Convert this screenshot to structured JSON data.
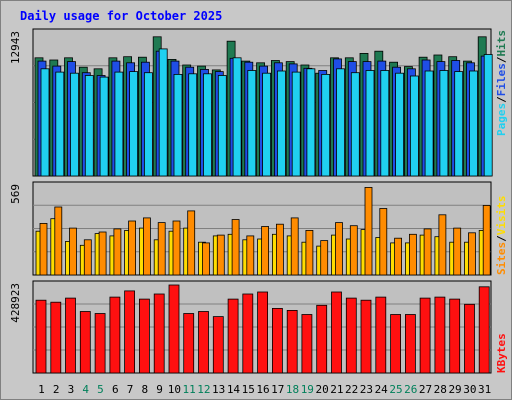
{
  "title": "Daily usage for October 2025",
  "colors": {
    "background": "#c8c8c8",
    "panel": "#c0c0c0",
    "grid": "#808080",
    "hits": "#1f7a52",
    "files": "#1f4ee6",
    "pages": "#20d0f0",
    "visits": "#ffdd00",
    "sites": "#ff8c00",
    "kbytes": "#ff1010",
    "day_black": "#000000",
    "day_weekend": "#00805a"
  },
  "chart_data": [
    {
      "type": "bar",
      "panel": "hits-files-pages",
      "ymax_label": "12943",
      "ylim": [
        0,
        12943
      ],
      "categories": [
        "1",
        "2",
        "3",
        "4",
        "5",
        "6",
        "7",
        "8",
        "9",
        "10",
        "11",
        "12",
        "13",
        "14",
        "15",
        "16",
        "17",
        "18",
        "19",
        "20",
        "21",
        "22",
        "23",
        "24",
        "25",
        "26",
        "27",
        "28",
        "29",
        "30",
        "31"
      ],
      "series": [
        {
          "name": "Hits",
          "values": [
            10700,
            10500,
            10700,
            9850,
            9700,
            10700,
            10800,
            10750,
            12600,
            10550,
            10050,
            9950,
            9600,
            12200,
            10400,
            10250,
            10450,
            10350,
            10050,
            9300,
            10700,
            10700,
            11100,
            11300,
            10300,
            9900,
            10750,
            10950,
            10800,
            10400,
            12600
          ]
        },
        {
          "name": "Files",
          "values": [
            10400,
            9950,
            10350,
            9350,
            9100,
            10400,
            10250,
            10300,
            11300,
            10400,
            9850,
            9650,
            9450,
            10650,
            10300,
            9950,
            10250,
            10150,
            9750,
            9550,
            10600,
            10350,
            10350,
            10400,
            9850,
            9700,
            10500,
            10350,
            10450,
            10250,
            10850
          ]
        },
        {
          "name": "Pages",
          "values": [
            9700,
            9400,
            9300,
            9100,
            8950,
            9400,
            9450,
            9350,
            11500,
            9200,
            9250,
            9250,
            9100,
            10700,
            9550,
            9300,
            9500,
            9400,
            9700,
            9200,
            9700,
            9350,
            9550,
            9550,
            9300,
            9050,
            9500,
            9550,
            9450,
            9500,
            11000
          ]
        }
      ],
      "legend": [
        "Pages",
        "Files",
        "Hits"
      ]
    },
    {
      "type": "bar",
      "panel": "visits-sites",
      "ymax_label": "569",
      "ylim": [
        0,
        569
      ],
      "categories": [
        "1",
        "2",
        "3",
        "4",
        "5",
        "6",
        "7",
        "8",
        "9",
        "10",
        "11",
        "12",
        "13",
        "14",
        "15",
        "16",
        "17",
        "18",
        "19",
        "20",
        "21",
        "22",
        "23",
        "24",
        "25",
        "26",
        "27",
        "28",
        "29",
        "30",
        "31"
      ],
      "series": [
        {
          "name": "Visits",
          "values": [
            280,
            360,
            215,
            190,
            265,
            250,
            285,
            300,
            225,
            280,
            300,
            210,
            250,
            260,
            225,
            230,
            260,
            250,
            210,
            185,
            255,
            230,
            290,
            240,
            205,
            205,
            255,
            245,
            210,
            210,
            285
          ]
        },
        {
          "name": "Sites",
          "values": [
            330,
            435,
            300,
            225,
            275,
            295,
            345,
            365,
            335,
            345,
            410,
            205,
            255,
            355,
            250,
            310,
            325,
            365,
            285,
            220,
            335,
            315,
            560,
            425,
            235,
            260,
            295,
            385,
            300,
            270,
            445
          ]
        }
      ],
      "legend": [
        "Sites",
        "Visits"
      ]
    },
    {
      "type": "bar",
      "panel": "kbytes",
      "ymax_label": "428923",
      "ylim": [
        0,
        428923
      ],
      "categories": [
        "1",
        "2",
        "3",
        "4",
        "5",
        "6",
        "7",
        "8",
        "9",
        "10",
        "11",
        "12",
        "13",
        "14",
        "15",
        "16",
        "17",
        "18",
        "19",
        "20",
        "21",
        "22",
        "23",
        "24",
        "25",
        "26",
        "27",
        "28",
        "29",
        "30",
        "31"
      ],
      "series": [
        {
          "name": "KBytes",
          "values": [
            355000,
            345000,
            365000,
            300000,
            290000,
            370000,
            400000,
            360000,
            385000,
            428923,
            290000,
            300000,
            275000,
            360000,
            385000,
            395000,
            315000,
            305000,
            285000,
            330000,
            395000,
            365000,
            355000,
            370000,
            285000,
            285000,
            365000,
            370000,
            360000,
            335000,
            420000
          ]
        }
      ],
      "legend": [
        "KBytes"
      ]
    }
  ],
  "days": [
    {
      "label": "1",
      "weekend": false
    },
    {
      "label": "2",
      "weekend": false
    },
    {
      "label": "3",
      "weekend": false
    },
    {
      "label": "4",
      "weekend": true
    },
    {
      "label": "5",
      "weekend": true
    },
    {
      "label": "6",
      "weekend": false
    },
    {
      "label": "7",
      "weekend": false
    },
    {
      "label": "8",
      "weekend": false
    },
    {
      "label": "9",
      "weekend": false
    },
    {
      "label": "10",
      "weekend": false
    },
    {
      "label": "11",
      "weekend": true
    },
    {
      "label": "12",
      "weekend": true
    },
    {
      "label": "13",
      "weekend": false
    },
    {
      "label": "14",
      "weekend": false
    },
    {
      "label": "15",
      "weekend": false
    },
    {
      "label": "16",
      "weekend": false
    },
    {
      "label": "17",
      "weekend": false
    },
    {
      "label": "18",
      "weekend": true
    },
    {
      "label": "19",
      "weekend": true
    },
    {
      "label": "20",
      "weekend": false
    },
    {
      "label": "21",
      "weekend": false
    },
    {
      "label": "22",
      "weekend": false
    },
    {
      "label": "23",
      "weekend": false
    },
    {
      "label": "24",
      "weekend": false
    },
    {
      "label": "25",
      "weekend": true
    },
    {
      "label": "26",
      "weekend": true
    },
    {
      "label": "27",
      "weekend": false
    },
    {
      "label": "28",
      "weekend": false
    },
    {
      "label": "29",
      "weekend": false
    },
    {
      "label": "30",
      "weekend": false
    },
    {
      "label": "31",
      "weekend": false
    }
  ],
  "legend_labels": {
    "pages": "Pages",
    "files": "Files",
    "hits": "Hits",
    "sites": "Sites",
    "visits": "Visits",
    "kbytes": "KBytes",
    "sep": "/"
  }
}
